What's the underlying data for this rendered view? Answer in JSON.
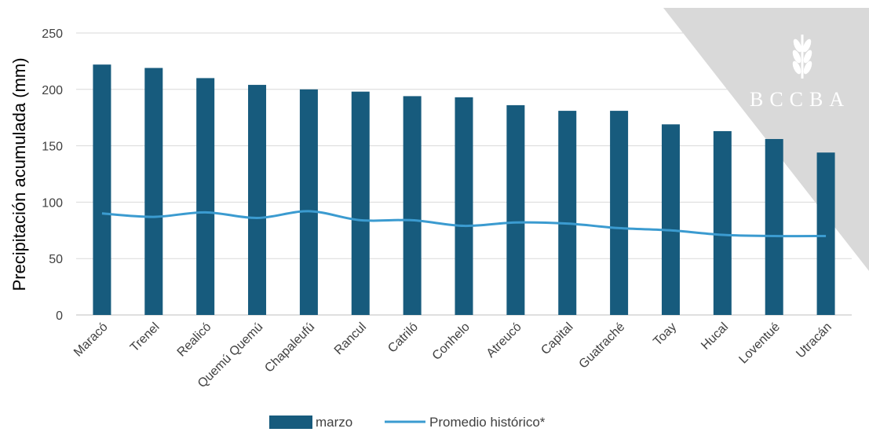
{
  "chart_data": {
    "type": "bar",
    "categories": [
      "Maracó",
      "Trenel",
      "Realicó",
      "Quemú Quemú",
      "Chapaleufú",
      "Rancul",
      "Catriló",
      "Conhelo",
      "Atreucó",
      "Capital",
      "Guatraché",
      "Toay",
      "Hucal",
      "Loventué",
      "Utracán"
    ],
    "series": [
      {
        "name": "marzo",
        "type": "bar",
        "color": "#175b7d",
        "values": [
          222,
          219,
          210,
          204,
          200,
          198,
          194,
          193,
          186,
          181,
          181,
          169,
          163,
          156,
          144
        ]
      },
      {
        "name": "Promedio histórico*",
        "type": "line",
        "color": "#3b9bd0",
        "values": [
          90,
          87,
          91,
          86,
          92,
          84,
          84,
          79,
          82,
          81,
          77,
          75,
          71,
          70,
          70
        ]
      }
    ],
    "ylabel": "Precipitación acumulada (mm)",
    "xlabel": "",
    "ylim": [
      0,
      250
    ],
    "yticks": [
      0,
      50,
      100,
      150,
      200,
      250
    ],
    "grid": true,
    "legend_position": "bottom"
  },
  "watermark": {
    "text": "BCCBA",
    "icon": "wheat-icon"
  }
}
